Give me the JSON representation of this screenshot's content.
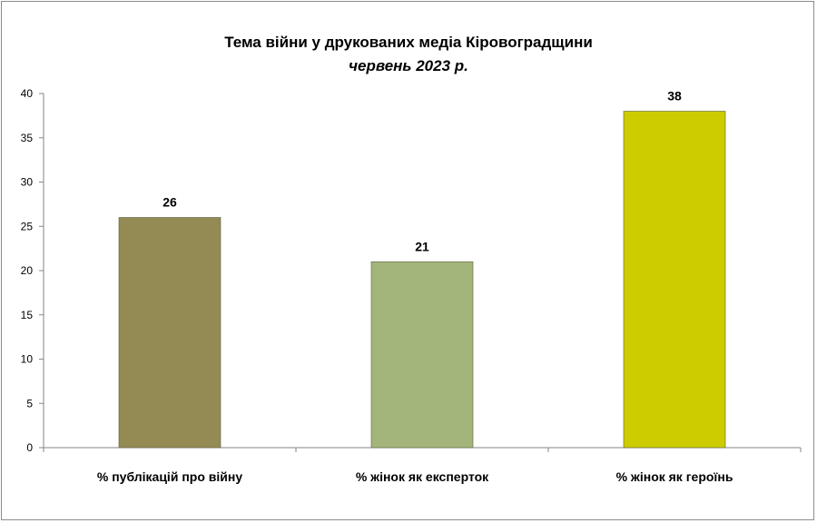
{
  "chart_data": {
    "type": "bar",
    "title": "Тема війни у друкованих медіа Кіровоградщини",
    "subtitle": "червень 2023 р.",
    "categories": [
      "% публікацій про війну",
      "% жінок як експерток",
      "% жінок як героїнь"
    ],
    "values": [
      26,
      21,
      38
    ],
    "data_labels": [
      "26",
      "21",
      "38"
    ],
    "bar_colors": [
      "#948a54",
      "#a3b57a",
      "#cccc00"
    ],
    "ylim": [
      0,
      40
    ],
    "yticks": [
      0,
      5,
      10,
      15,
      20,
      25,
      30,
      35,
      40
    ],
    "ytick_labels": [
      "0",
      "5",
      "10",
      "15",
      "20",
      "25",
      "30",
      "35",
      "40"
    ],
    "grid": false,
    "legend": "none"
  }
}
